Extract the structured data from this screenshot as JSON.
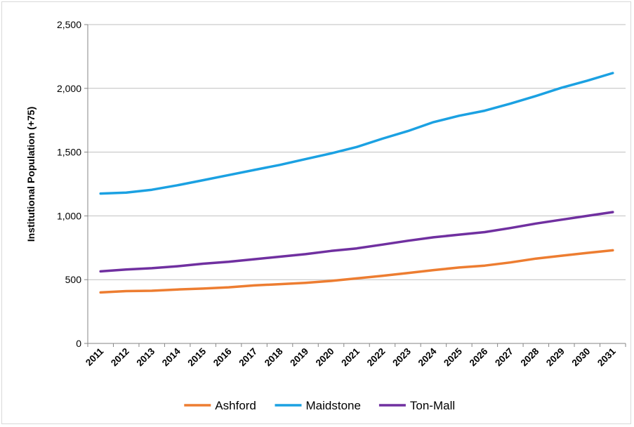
{
  "chart_data": {
    "type": "line",
    "ylabel": "Institutional Population (+75)",
    "xlabel": "",
    "title": "",
    "x": [
      "2011",
      "2012",
      "2013",
      "2014",
      "2015",
      "2016",
      "2017",
      "2018",
      "2019",
      "2020",
      "2021",
      "2022",
      "2023",
      "2024",
      "2025",
      "2026",
      "2027",
      "2028",
      "2029",
      "2030",
      "2031"
    ],
    "ylim": [
      0,
      2500
    ],
    "yticks": [
      0,
      500,
      1000,
      1500,
      2000,
      2500
    ],
    "ytick_labels": [
      "0",
      "500",
      "1,000",
      "1,500",
      "2,000",
      "2,500"
    ],
    "grid": "horizontal",
    "legend": "bottom",
    "series": [
      {
        "name": "Ashford",
        "color": "#ED7D31",
        "values": [
          400,
          410,
          413,
          423,
          430,
          440,
          455,
          465,
          475,
          490,
          510,
          530,
          552,
          575,
          595,
          610,
          635,
          665,
          688,
          710,
          730
        ]
      },
      {
        "name": "Maidstone",
        "color": "#1BA1E2",
        "values": [
          1175,
          1182,
          1205,
          1240,
          1280,
          1320,
          1360,
          1400,
          1445,
          1490,
          1540,
          1605,
          1665,
          1735,
          1785,
          1825,
          1880,
          1940,
          2005,
          2060,
          2120
        ]
      },
      {
        "name": "Ton-Mall",
        "color": "#7030A0",
        "values": [
          565,
          580,
          590,
          605,
          625,
          640,
          660,
          680,
          700,
          725,
          745,
          775,
          805,
          832,
          853,
          873,
          905,
          940,
          970,
          1000,
          1030
        ]
      }
    ]
  }
}
